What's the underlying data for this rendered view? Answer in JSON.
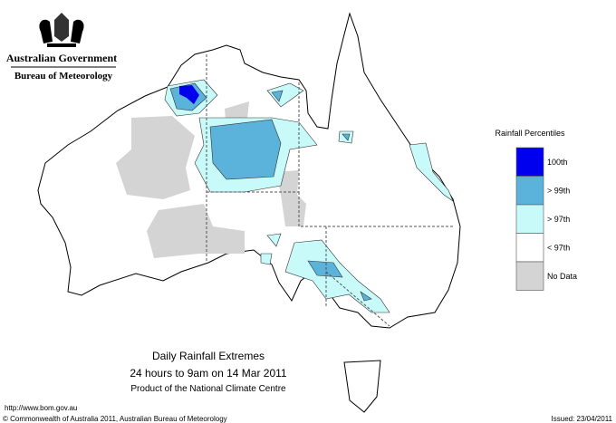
{
  "header": {
    "agency": "Australian Government",
    "bureau": "Bureau of Meteorology"
  },
  "legend": {
    "title": "Rainfall Percentiles",
    "items": [
      {
        "label": "100th",
        "color": "#0000ee"
      },
      {
        "label": "> 99th",
        "color": "#5bb3dc"
      },
      {
        "label": "> 97th",
        "color": "#c8fafa"
      },
      {
        "label": "< 97th",
        "color": "#ffffff"
      },
      {
        "label": "No Data",
        "color": "#d4d4d4"
      }
    ]
  },
  "caption": {
    "title": "Daily Rainfall Extremes",
    "period": "24 hours to 9am on 14 Mar 2011",
    "product": "Product of the National Climate Centre"
  },
  "footer": {
    "url": "http://www.bom.gov.au",
    "copyright": "© Commonwealth of Australia 2011, Australian Bureau of Meteorology",
    "issued": "Issued: 23/04/2011"
  }
}
